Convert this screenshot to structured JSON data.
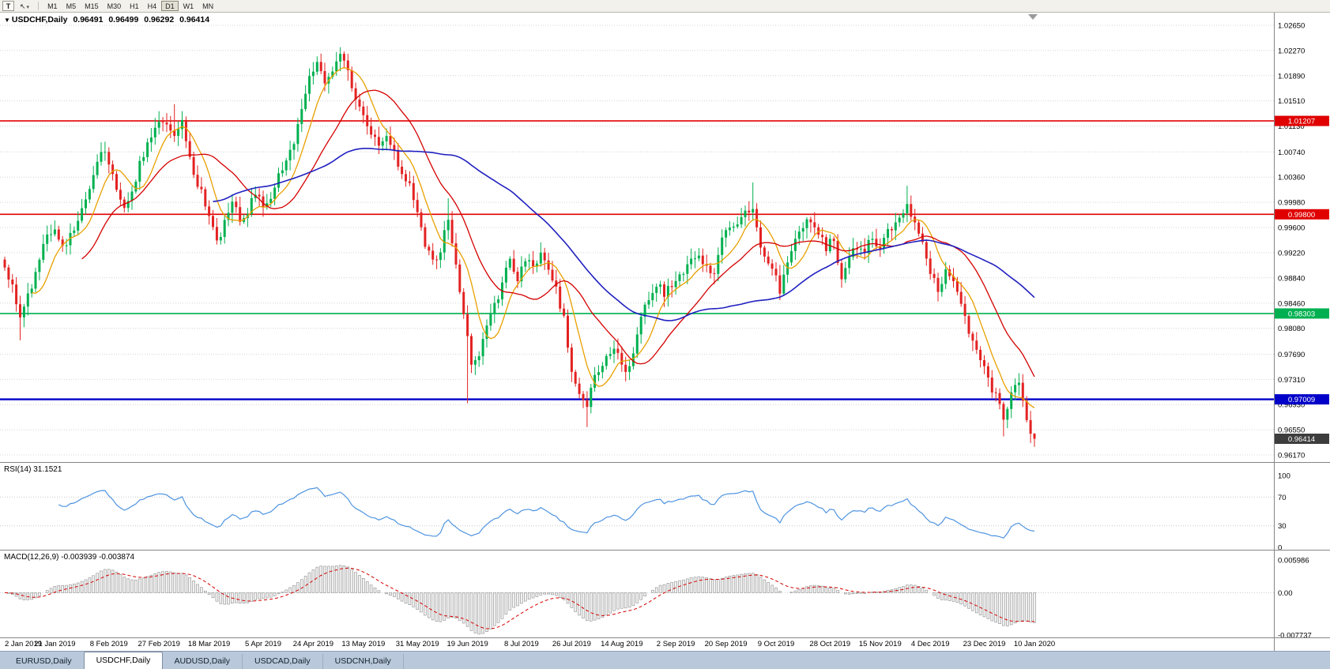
{
  "toolbar": {
    "tool_button_label": "T",
    "cursor_icon": "↖",
    "dropdown_icon": "▾",
    "timeframes": [
      "M1",
      "M5",
      "M15",
      "M30",
      "H1",
      "H4",
      "D1",
      "W1",
      "MN"
    ],
    "active_timeframe": "D1"
  },
  "chart_data": {
    "type": "candlestick",
    "symbol": "USDCHF",
    "timeframe": "Daily",
    "title_bar": {
      "dropdown_icon": "▼",
      "symbol": "USDCHF,Daily",
      "open": "0.96491",
      "high": "0.96499",
      "low": "0.96292",
      "close": "0.96414"
    },
    "last_candle": {
      "open": 0.96491,
      "high": 0.96499,
      "low": 0.96292,
      "close": 0.96414
    },
    "current_price": 0.96414,
    "current_price_label": "0.96414",
    "y_axis_ticks": [
      "1.02650",
      "1.02270",
      "1.01890",
      "1.01510",
      "1.01130",
      "1.00740",
      "1.00360",
      "0.99980",
      "0.99600",
      "0.99220",
      "0.98840",
      "0.98460",
      "0.98080",
      "0.97690",
      "0.97310",
      "0.96930",
      "0.96550",
      "0.96170"
    ],
    "x_axis_labels": [
      "2 Jan 2019",
      "21 Jan 2019",
      "8 Feb 2019",
      "27 Feb 2019",
      "18 Mar 2019",
      "5 Apr 2019",
      "24 Apr 2019",
      "13 May 2019",
      "31 May 2019",
      "19 Jun 2019",
      "8 Jul 2019",
      "26 Jul 2019",
      "14 Aug 2019",
      "2 Sep 2019",
      "20 Sep 2019",
      "9 Oct 2019",
      "28 Oct 2019",
      "15 Nov 2019",
      "4 Dec 2019",
      "23 Dec 2019",
      "10 Jan 2020"
    ],
    "levels": [
      {
        "price": 1.01207,
        "label": "1.01207",
        "color": "#e00000",
        "width": 1.6
      },
      {
        "price": 0.998,
        "label": "0.99800",
        "color": "#e00000",
        "width": 1.6
      },
      {
        "price": 0.98303,
        "label": "0.98303",
        "color": "#00b050",
        "width": 1.6
      },
      {
        "price": 0.97009,
        "label": "0.97009",
        "color": "#0000c8",
        "width": 2.4
      }
    ],
    "moving_averages": [
      {
        "period": 8,
        "color": "#e8a000",
        "width": 1.3
      },
      {
        "period": 21,
        "color": "#d40000",
        "width": 1.3
      },
      {
        "period": 55,
        "color": "#2020c0",
        "width": 1.6
      }
    ],
    "colors": {
      "candle_up": "#00b050",
      "candle_down": "#e32222",
      "current_badge": "#3d3d3d",
      "grid": "#d4d4d4"
    },
    "bars_count": 268,
    "price_path_anchors": [
      [
        0,
        0.99
      ],
      [
        2,
        0.9868
      ],
      [
        4,
        0.9828
      ],
      [
        5,
        0.984
      ],
      [
        7,
        0.9872
      ],
      [
        9,
        0.9915
      ],
      [
        11,
        0.9945
      ],
      [
        13,
        0.9955
      ],
      [
        15,
        0.993
      ],
      [
        17,
        0.9945
      ],
      [
        20,
        0.9985
      ],
      [
        23,
        1.004
      ],
      [
        25,
        1.0078
      ],
      [
        27,
        1.006
      ],
      [
        29,
        1.0015
      ],
      [
        31,
        0.999
      ],
      [
        33,
        1.001
      ],
      [
        35,
        1.0052
      ],
      [
        37,
        1.0085
      ],
      [
        39,
        1.011
      ],
      [
        42,
        1.0122
      ],
      [
        44,
        1.01
      ],
      [
        46,
        1.0115
      ],
      [
        48,
        1.007
      ],
      [
        50,
        1.0025
      ],
      [
        52,
        0.9995
      ],
      [
        54,
        0.9958
      ],
      [
        55,
        0.9935
      ],
      [
        57,
        0.997
      ],
      [
        59,
        1.0
      ],
      [
        61,
        0.9975
      ],
      [
        63,
        0.9985
      ],
      [
        65,
        1.0008
      ],
      [
        67,
        0.9988
      ],
      [
        69,
        1.0005
      ],
      [
        71,
        1.0042
      ],
      [
        73,
        1.006
      ],
      [
        75,
        1.009
      ],
      [
        77,
        1.014
      ],
      [
        79,
        1.0185
      ],
      [
        81,
        1.0205
      ],
      [
        83,
        1.018
      ],
      [
        85,
        1.02
      ],
      [
        87,
        1.0225
      ],
      [
        89,
        1.0195
      ],
      [
        91,
        1.015
      ],
      [
        93,
        1.0128
      ],
      [
        95,
        1.01
      ],
      [
        97,
        1.0082
      ],
      [
        99,
        1.01
      ],
      [
        101,
        1.007
      ],
      [
        103,
        1.0042
      ],
      [
        105,
        1.0025
      ],
      [
        107,
        0.999
      ],
      [
        109,
        0.993
      ],
      [
        111,
        0.9905
      ],
      [
        113,
        0.9922
      ],
      [
        115,
        0.9978
      ],
      [
        116,
        0.994
      ],
      [
        118,
        0.9868
      ],
      [
        120,
        0.979
      ],
      [
        121,
        0.9745
      ],
      [
        123,
        0.9768
      ],
      [
        125,
        0.9812
      ],
      [
        127,
        0.984
      ],
      [
        129,
        0.9878
      ],
      [
        131,
        0.9905
      ],
      [
        133,
        0.9882
      ],
      [
        135,
        0.9912
      ],
      [
        137,
        0.99
      ],
      [
        139,
        0.9922
      ],
      [
        141,
        0.9895
      ],
      [
        143,
        0.987
      ],
      [
        145,
        0.9818
      ],
      [
        147,
        0.974
      ],
      [
        149,
        0.9708
      ],
      [
        151,
        0.969
      ],
      [
        152,
        0.9718
      ],
      [
        154,
        0.9745
      ],
      [
        156,
        0.9768
      ],
      [
        158,
        0.9782
      ],
      [
        160,
        0.976
      ],
      [
        161,
        0.9742
      ],
      [
        163,
        0.9778
      ],
      [
        165,
        0.9822
      ],
      [
        167,
        0.9848
      ],
      [
        169,
        0.9875
      ],
      [
        171,
        0.9862
      ],
      [
        173,
        0.987
      ],
      [
        176,
        0.9895
      ],
      [
        178,
        0.9912
      ],
      [
        180,
        0.9918
      ],
      [
        182,
        0.9902
      ],
      [
        184,
        0.9888
      ],
      [
        186,
        0.9942
      ],
      [
        188,
        0.9958
      ],
      [
        190,
        0.997
      ],
      [
        192,
        0.9982
      ],
      [
        194,
        0.9988
      ],
      [
        196,
        0.993
      ],
      [
        198,
        0.9905
      ],
      [
        200,
        0.9885
      ],
      [
        201,
        0.986
      ],
      [
        203,
        0.991
      ],
      [
        205,
        0.9945
      ],
      [
        207,
        0.9958
      ],
      [
        209,
        0.997
      ],
      [
        211,
        0.9948
      ],
      [
        213,
        0.9928
      ],
      [
        215,
        0.994
      ],
      [
        217,
        0.9885
      ],
      [
        219,
        0.9918
      ],
      [
        221,
        0.9935
      ],
      [
        223,
        0.9928
      ],
      [
        225,
        0.9948
      ],
      [
        227,
        0.993
      ],
      [
        229,
        0.9958
      ],
      [
        232,
        0.9975
      ],
      [
        234,
        0.999
      ],
      [
        236,
        0.9968
      ],
      [
        238,
        0.9935
      ],
      [
        240,
        0.9895
      ],
      [
        242,
        0.9868
      ],
      [
        244,
        0.9892
      ],
      [
        246,
        0.9878
      ],
      [
        248,
        0.9838
      ],
      [
        250,
        0.98
      ],
      [
        252,
        0.9772
      ],
      [
        254,
        0.9748
      ],
      [
        256,
        0.9718
      ],
      [
        258,
        0.9688
      ],
      [
        259,
        0.9668
      ],
      [
        261,
        0.971
      ],
      [
        263,
        0.9726
      ],
      [
        264,
        0.97
      ],
      [
        265,
        0.9675
      ],
      [
        266,
        0.9649
      ],
      [
        267,
        0.96414
      ]
    ],
    "wick_events": [
      {
        "bar": 4,
        "low": 0.979
      },
      {
        "bar": 44,
        "high": 1.0146
      },
      {
        "bar": 87,
        "high": 1.0232
      },
      {
        "bar": 115,
        "high": 1.0004
      },
      {
        "bar": 120,
        "low": 0.9695
      },
      {
        "bar": 151,
        "low": 0.9659
      },
      {
        "bar": 194,
        "high": 1.0028
      },
      {
        "bar": 234,
        "high": 1.0023
      },
      {
        "bar": 259,
        "low": 0.9645
      },
      {
        "bar": 267,
        "low": 0.96292
      }
    ],
    "indicators": {
      "rsi": {
        "label": "RSI(14) 31.1521",
        "period": 14,
        "value": 31.1521,
        "scale": [
          "100",
          "70",
          "30",
          "0"
        ],
        "overbought": 70,
        "oversold": 30,
        "color": "#4f94e0"
      },
      "macd": {
        "label": "MACD(12,26,9) -0.003939 -0.003874",
        "fast": 12,
        "slow": 26,
        "signal": 9,
        "macd_value": -0.003939,
        "signal_value": -0.003874,
        "scale": [
          "0.005986",
          "0.00",
          "-0.007737"
        ],
        "scale_values": [
          0.005986,
          0,
          -0.007737
        ],
        "signal_color": "#d40000",
        "histogram_color": "#8f8f8f"
      }
    }
  },
  "tabs": [
    {
      "label": "EURUSD,Daily",
      "active": false
    },
    {
      "label": "USDCHF,Daily",
      "active": true
    },
    {
      "label": "AUDUSD,Daily",
      "active": false
    },
    {
      "label": "USDCAD,Daily",
      "active": false
    },
    {
      "label": "USDCNH,Daily",
      "active": false
    }
  ]
}
